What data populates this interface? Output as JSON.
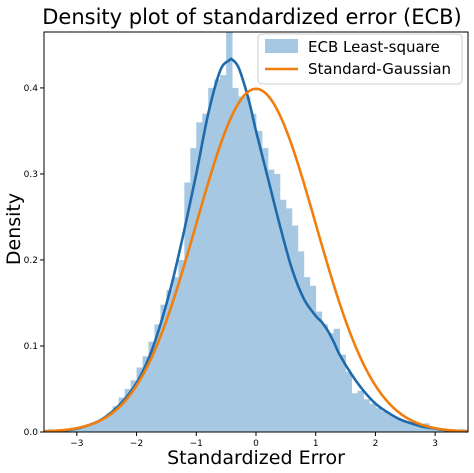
{
  "chart_data": {
    "type": "histogram+line",
    "title": "Density plot of standardized error (ECB)",
    "xlabel": "Standardized Error",
    "ylabel": "Density",
    "xlim": [
      -3.55,
      3.55
    ],
    "ylim": [
      0,
      0.465
    ],
    "xticks": [
      -3,
      -2,
      -1,
      0,
      1,
      2,
      3
    ],
    "xtick_labels": [
      "−3",
      "−2",
      "−1",
      "0",
      "1",
      "2",
      "3"
    ],
    "yticks": [
      0.0,
      0.1,
      0.2,
      0.3,
      0.4
    ],
    "ytick_labels": [
      "0.0",
      "0.1",
      "0.2",
      "0.3",
      "0.4"
    ],
    "legend_position": "top-right",
    "colors": {
      "histogram": "#a6c8e2",
      "kde": "#1f6aab",
      "gaussian": "#f07f0e"
    },
    "legend": [
      {
        "label": "ECB Least-square",
        "kind": "patch",
        "color": "#a6c8e2"
      },
      {
        "label": "Standard-Gaussian",
        "kind": "line",
        "color": "#f07f0e"
      }
    ],
    "histogram": {
      "bin_edges": [
        -3.4,
        -3.3,
        -3.2,
        -3.1,
        -3.0,
        -2.9,
        -2.8,
        -2.7,
        -2.6,
        -2.5,
        -2.4,
        -2.3,
        -2.2,
        -2.1,
        -2.0,
        -1.9,
        -1.8,
        -1.7,
        -1.6,
        -1.5,
        -1.4,
        -1.3,
        -1.2,
        -1.1,
        -1.0,
        -0.9,
        -0.8,
        -0.7,
        -0.6,
        -0.5,
        -0.4,
        -0.3,
        -0.2,
        -0.1,
        0.0,
        0.1,
        0.2,
        0.3,
        0.4,
        0.5,
        0.6,
        0.7,
        0.8,
        0.9,
        1.0,
        1.1,
        1.2,
        1.3,
        1.4,
        1.5,
        1.6,
        1.7,
        1.8,
        1.9,
        2.0,
        2.1,
        2.2,
        2.3,
        2.4,
        2.5,
        2.6,
        2.7,
        2.8,
        2.9,
        3.0,
        3.1
      ],
      "values": [
        0.002,
        0.003,
        0.004,
        0.005,
        0.006,
        0.008,
        0.01,
        0.012,
        0.016,
        0.022,
        0.03,
        0.04,
        0.05,
        0.06,
        0.075,
        0.088,
        0.105,
        0.125,
        0.148,
        0.165,
        0.18,
        0.2,
        0.29,
        0.33,
        0.36,
        0.37,
        0.4,
        0.41,
        0.415,
        0.465,
        0.4,
        0.39,
        0.39,
        0.37,
        0.35,
        0.33,
        0.305,
        0.3,
        0.27,
        0.26,
        0.24,
        0.21,
        0.18,
        0.17,
        0.14,
        0.125,
        0.115,
        0.12,
        0.09,
        0.07,
        0.045,
        0.048,
        0.038,
        0.033,
        0.028,
        0.024,
        0.02,
        0.016,
        0.013,
        0.01,
        0.008,
        0.006,
        0.01,
        0.004,
        0.003
      ]
    },
    "series": [
      {
        "name": "ECB Least-square",
        "style": "line",
        "x": [
          -3.55,
          -3.2,
          -3.0,
          -2.8,
          -2.6,
          -2.4,
          -2.2,
          -2.0,
          -1.8,
          -1.6,
          -1.4,
          -1.2,
          -1.0,
          -0.8,
          -0.6,
          -0.45,
          -0.4,
          -0.3,
          -0.2,
          -0.1,
          0.0,
          0.2,
          0.4,
          0.6,
          0.8,
          1.0,
          1.1,
          1.2,
          1.3,
          1.4,
          1.6,
          1.8,
          2.0,
          2.2,
          2.4,
          2.6,
          2.8,
          3.0,
          3.2,
          3.55
        ],
        "values": [
          0.001,
          0.002,
          0.004,
          0.008,
          0.014,
          0.024,
          0.038,
          0.057,
          0.085,
          0.125,
          0.175,
          0.235,
          0.3,
          0.37,
          0.42,
          0.432,
          0.433,
          0.425,
          0.405,
          0.38,
          0.35,
          0.295,
          0.24,
          0.19,
          0.155,
          0.135,
          0.128,
          0.118,
          0.105,
          0.09,
          0.067,
          0.048,
          0.033,
          0.023,
          0.015,
          0.01,
          0.006,
          0.004,
          0.002,
          0.001
        ]
      },
      {
        "name": "Standard-Gaussian",
        "style": "line",
        "function": "normal_pdf",
        "mean": 0,
        "sd": 1
      }
    ]
  }
}
